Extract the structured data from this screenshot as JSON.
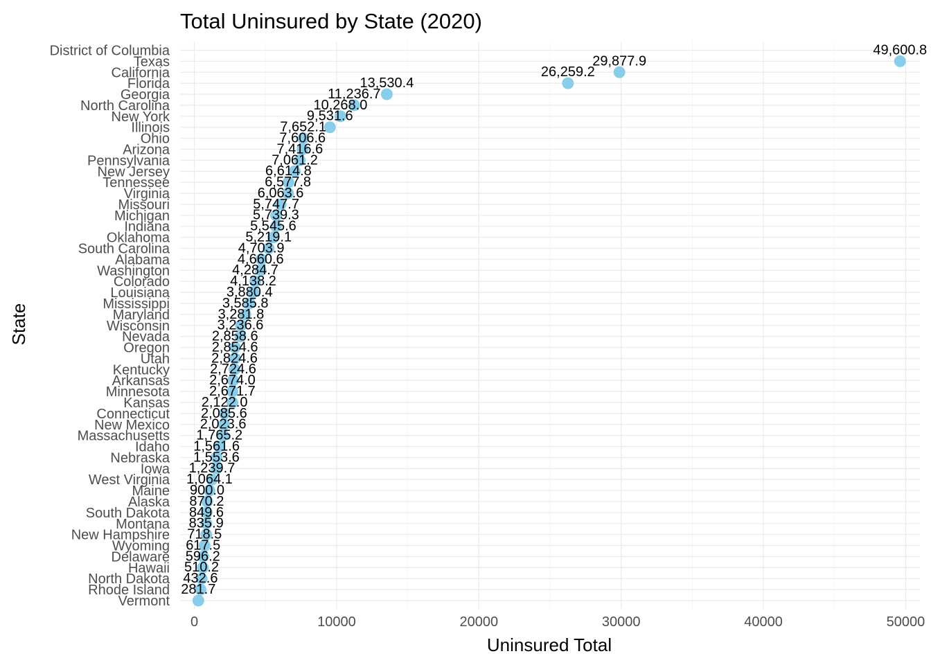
{
  "chart_data": {
    "type": "scatter",
    "title": "Total Uninsured by State (2020)",
    "xlabel": "Uninsured Total",
    "ylabel": "State",
    "xlim": [
      -1000,
      51000
    ],
    "x_ticks": [
      0,
      10000,
      20000,
      30000,
      40000,
      50000
    ],
    "x_tick_labels": [
      "0",
      "10000",
      "20000",
      "30000",
      "40000",
      "50000"
    ],
    "grid": true,
    "legend": "none",
    "point_color": "#87CEEB",
    "categories": [
      "District of Columbia",
      "Texas",
      "California",
      "Florida",
      "Georgia",
      "North Carolina",
      "New York",
      "Illinois",
      "Ohio",
      "Arizona",
      "Pennsylvania",
      "New Jersey",
      "Tennessee",
      "Virginia",
      "Missouri",
      "Michigan",
      "Indiana",
      "Oklahoma",
      "South Carolina",
      "Alabama",
      "Washington",
      "Colorado",
      "Louisiana",
      "Mississippi",
      "Maryland",
      "Wisconsin",
      "Nevada",
      "Oregon",
      "Utah",
      "Kentucky",
      "Arkansas",
      "Minnesota",
      "Kansas",
      "Connecticut",
      "New Mexico",
      "Massachusetts",
      "Idaho",
      "Nebraska",
      "Iowa",
      "West Virginia",
      "Maine",
      "Alaska",
      "South Dakota",
      "Montana",
      "New Hampshire",
      "Wyoming",
      "Delaware",
      "Hawaii",
      "North Dakota",
      "Rhode Island",
      "Vermont"
    ],
    "points": [
      {
        "state": "Texas",
        "value": 49600.8,
        "label": "49,600.8"
      },
      {
        "state": "California",
        "value": 29877.9,
        "label": "29,877.9"
      },
      {
        "state": "Florida",
        "value": 26259.2,
        "label": "26,259.2"
      },
      {
        "state": "Georgia",
        "value": 13530.4,
        "label": "13,530.4"
      },
      {
        "state": "North Carolina",
        "value": 11236.7,
        "label": "11,236.7"
      },
      {
        "state": "New York",
        "value": 10268.0,
        "label": "10,268.0"
      },
      {
        "state": "Illinois",
        "value": 9531.6,
        "label": "9,531.6"
      },
      {
        "state": "Ohio",
        "value": 7652.1,
        "label": "7,652.1"
      },
      {
        "state": "Arizona",
        "value": 7606.6,
        "label": "7,606.6"
      },
      {
        "state": "Pennsylvania",
        "value": 7416.6,
        "label": "7,416.6"
      },
      {
        "state": "New Jersey",
        "value": 7061.2,
        "label": "7,061.2"
      },
      {
        "state": "Tennessee",
        "value": 6614.8,
        "label": "6,614.8"
      },
      {
        "state": "Virginia",
        "value": 6577.8,
        "label": "6,577.8"
      },
      {
        "state": "Missouri",
        "value": 6063.6,
        "label": "6,063.6"
      },
      {
        "state": "Michigan",
        "value": 5747.7,
        "label": "5,747.7"
      },
      {
        "state": "Indiana",
        "value": 5739.3,
        "label": "5,739.3"
      },
      {
        "state": "Oklahoma",
        "value": 5545.6,
        "label": "5,545.6"
      },
      {
        "state": "South Carolina",
        "value": 5219.1,
        "label": "5,219.1"
      },
      {
        "state": "Alabama",
        "value": 4703.9,
        "label": "4,703.9"
      },
      {
        "state": "Washington",
        "value": 4660.6,
        "label": "4,660.6"
      },
      {
        "state": "Colorado",
        "value": 4284.7,
        "label": "4,284.7"
      },
      {
        "state": "Louisiana",
        "value": 4138.2,
        "label": "4,138.2"
      },
      {
        "state": "Mississippi",
        "value": 3880.4,
        "label": "3,880.4"
      },
      {
        "state": "Maryland",
        "value": 3585.8,
        "label": "3,585.8"
      },
      {
        "state": "Wisconsin",
        "value": 3281.8,
        "label": "3,281.8"
      },
      {
        "state": "Nevada",
        "value": 3236.6,
        "label": "3,236.6"
      },
      {
        "state": "Oregon",
        "value": 2858.6,
        "label": "2,858.6"
      },
      {
        "state": "Utah",
        "value": 2854.6,
        "label": "2,854.6"
      },
      {
        "state": "Kentucky",
        "value": 2824.6,
        "label": "2,824.6"
      },
      {
        "state": "Arkansas",
        "value": 2724.6,
        "label": "2,724.6"
      },
      {
        "state": "Minnesota",
        "value": 2674.0,
        "label": "2,674.0"
      },
      {
        "state": "Kansas",
        "value": 2671.7,
        "label": "2,671.7"
      },
      {
        "state": "Connecticut",
        "value": 2122.0,
        "label": "2,122.0"
      },
      {
        "state": "New Mexico",
        "value": 2085.6,
        "label": "2,085.6"
      },
      {
        "state": "Massachusetts",
        "value": 2023.6,
        "label": "2,023.6"
      },
      {
        "state": "Idaho",
        "value": 1765.2,
        "label": "1,765.2"
      },
      {
        "state": "Nebraska",
        "value": 1561.6,
        "label": "1,561.6"
      },
      {
        "state": "Iowa",
        "value": 1553.6,
        "label": "1,553.6"
      },
      {
        "state": "West Virginia",
        "value": 1239.7,
        "label": "1,239.7"
      },
      {
        "state": "Maine",
        "value": 1064.1,
        "label": "1,064.1"
      },
      {
        "state": "Alaska",
        "value": 900.0,
        "label": "900.0"
      },
      {
        "state": "South Dakota",
        "value": 870.2,
        "label": "870.2"
      },
      {
        "state": "Montana",
        "value": 849.6,
        "label": "849.6"
      },
      {
        "state": "New Hampshire",
        "value": 835.9,
        "label": "835.9"
      },
      {
        "state": "Wyoming",
        "value": 718.5,
        "label": "718.5"
      },
      {
        "state": "Delaware",
        "value": 617.5,
        "label": "617.5"
      },
      {
        "state": "Hawaii",
        "value": 596.2,
        "label": "596.2"
      },
      {
        "state": "North Dakota",
        "value": 510.2,
        "label": "510.2"
      },
      {
        "state": "Rhode Island",
        "value": 432.6,
        "label": "432.6"
      },
      {
        "state": "Vermont",
        "value": 281.7,
        "label": "281.7"
      }
    ]
  }
}
